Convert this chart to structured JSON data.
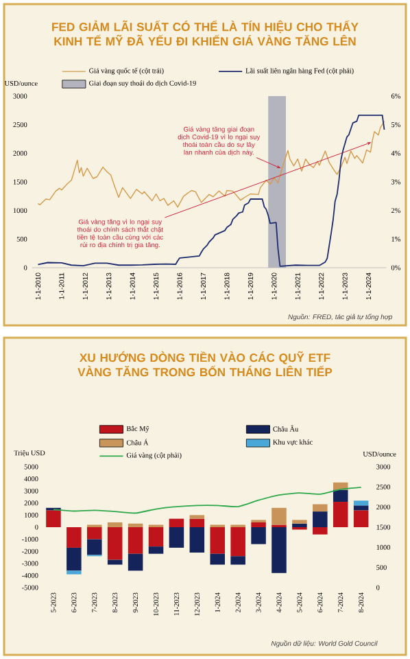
{
  "chart_data": [
    {
      "type": "line",
      "title": "FED GIẢM LÃI SUẤT CÓ THỂ LÀ TÍN HIỆU CHO THẤY KINH TẾ MỸ ĐÃ YẾU ĐI KHIẾN GIÁ VÀNG TĂNG LÊN",
      "ylabel": "USD/ounce",
      "legend": "top",
      "xlim": [
        "2009-10",
        "2024-10"
      ],
      "xticks": [
        {
          "value": "2010-01-01",
          "label": "1-1-2010"
        },
        {
          "value": "2011-01-01",
          "label": "1-1-2011"
        },
        {
          "value": "2012-01-01",
          "label": "1-1-2012"
        },
        {
          "value": "2013-01-01",
          "label": "1-1-2013"
        },
        {
          "value": "2014-01-01",
          "label": "1-1-2014"
        },
        {
          "value": "2015-01-01",
          "label": "1-1-2015"
        },
        {
          "value": "2016-01-01",
          "label": "1-1-2016"
        },
        {
          "value": "2017-01-01",
          "label": "1-1-2017"
        },
        {
          "value": "2018-01-01",
          "label": "1-1-2018"
        },
        {
          "value": "2019-01-01",
          "label": "1-1-2019"
        },
        {
          "value": "2020-01-01",
          "label": "1-1-2020"
        },
        {
          "value": "2021-01-01",
          "label": "1-1-2021"
        },
        {
          "value": "2022-01-01",
          "label": "1-1-2022"
        },
        {
          "value": "2023-01-01",
          "label": "1-1-2023"
        },
        {
          "value": "2024-01-01",
          "label": "1-1-2024"
        }
      ],
      "ylim": [
        0,
        3000
      ],
      "yticks": [
        0,
        500,
        1000,
        1500,
        2000,
        2500,
        3000
      ],
      "y2lim": [
        0,
        6
      ],
      "y2ticks": [
        {
          "value": 0,
          "label": "0%"
        },
        {
          "value": 1,
          "label": "1%"
        },
        {
          "value": 2,
          "label": "2%"
        },
        {
          "value": 3,
          "label": "3%"
        },
        {
          "value": 4,
          "label": "4%"
        },
        {
          "value": 5,
          "label": "5%"
        },
        {
          "value": 6,
          "label": "6%"
        }
      ],
      "bands": [
        {
          "axis": "x",
          "from": "2019-10",
          "to": "2020-07",
          "label": "Giai đoạn suy thoái do dịch Covid-19",
          "color": "#b4b4be"
        }
      ],
      "series": [
        {
          "name": "Giá vàng quốc tế (cột trái)",
          "color": "#d49a4a",
          "x": [
            "2010-01",
            "2010-02",
            "2010-05",
            "2010-07",
            "2010-10",
            "2010-12",
            "2011-01",
            "2011-04",
            "2011-06",
            "2011-08",
            "2011-09",
            "2011-10",
            "2011-11",
            "2011-12",
            "2012-02",
            "2012-05",
            "2012-07",
            "2012-10",
            "2012-12",
            "2013-02",
            "2013-04",
            "2013-06",
            "2013-08",
            "2013-12",
            "2014-03",
            "2014-06",
            "2014-07",
            "2014-11",
            "2015-01",
            "2015-03",
            "2015-05",
            "2015-07",
            "2015-10",
            "2015-12",
            "2016-03",
            "2016-07",
            "2016-09",
            "2016-12",
            "2017-04",
            "2017-06",
            "2017-09",
            "2017-12",
            "2018-01",
            "2018-04",
            "2018-08",
            "2018-10",
            "2019-01",
            "2019-05",
            "2019-06",
            "2019-09",
            "2019-11",
            "2020-01",
            "2020-03",
            "2020-05",
            "2020-08",
            "2020-09",
            "2020-11",
            "2021-01",
            "2021-03",
            "2021-05",
            "2021-07",
            "2021-09",
            "2021-11",
            "2021-12",
            "2022-03",
            "2022-05",
            "2022-07",
            "2022-09",
            "2022-11",
            "2023-01",
            "2023-02",
            "2023-04",
            "2023-06",
            "2023-07",
            "2023-10",
            "2023-12",
            "2024-02",
            "2024-03",
            "2024-04",
            "2024-06",
            "2024-07",
            "2024-08",
            "2024-09"
          ],
          "values": [
            1120,
            1100,
            1200,
            1190,
            1340,
            1390,
            1360,
            1470,
            1530,
            1760,
            1880,
            1660,
            1750,
            1600,
            1740,
            1560,
            1590,
            1760,
            1680,
            1620,
            1420,
            1230,
            1400,
            1210,
            1370,
            1290,
            1330,
            1170,
            1290,
            1170,
            1210,
            1090,
            1170,
            1060,
            1250,
            1350,
            1330,
            1140,
            1280,
            1240,
            1340,
            1250,
            1350,
            1340,
            1180,
            1230,
            1290,
            1280,
            1400,
            1530,
            1460,
            1570,
            1480,
            1730,
            2050,
            1900,
            1780,
            1900,
            1690,
            1900,
            1800,
            1750,
            1860,
            1790,
            2040,
            1840,
            1730,
            1630,
            1760,
            1930,
            1820,
            2040,
            1910,
            1960,
            1830,
            2060,
            2020,
            2230,
            2380,
            2320,
            2450,
            2500,
            2560
          ]
        },
        {
          "name": "Lãi suất liên ngân hàng Fed (cột phải)",
          "color": "#1c2a6e",
          "axis": "y2",
          "x": [
            "2010-01",
            "2010-06",
            "2011-01",
            "2011-06",
            "2011-12",
            "2012-06",
            "2012-12",
            "2013-06",
            "2013-12",
            "2014-06",
            "2014-12",
            "2015-06",
            "2015-11",
            "2015-12",
            "2016-01",
            "2016-11",
            "2016-12",
            "2017-01",
            "2017-03",
            "2017-04",
            "2017-06",
            "2017-07",
            "2017-12",
            "2018-01",
            "2018-03",
            "2018-04",
            "2018-06",
            "2018-07",
            "2018-09",
            "2018-10",
            "2018-12",
            "2019-01",
            "2019-07",
            "2019-08",
            "2019-09",
            "2019-10",
            "2019-11",
            "2020-02",
            "2020-03",
            "2020-04",
            "2020-12",
            "2021-06",
            "2021-12",
            "2022-03",
            "2022-04",
            "2022-05",
            "2022-06",
            "2022-07",
            "2022-08",
            "2022-09",
            "2022-10",
            "2022-11",
            "2022-12",
            "2023-02",
            "2023-03",
            "2023-05",
            "2023-07",
            "2023-08",
            "2024-07",
            "2024-08",
            "2024-09"
          ],
          "values": [
            0.11,
            0.18,
            0.17,
            0.09,
            0.07,
            0.16,
            0.16,
            0.09,
            0.09,
            0.1,
            0.12,
            0.13,
            0.12,
            0.24,
            0.34,
            0.41,
            0.54,
            0.65,
            0.79,
            0.9,
            1.04,
            1.15,
            1.3,
            1.41,
            1.51,
            1.69,
            1.82,
            1.91,
            1.95,
            2.19,
            2.27,
            2.4,
            2.4,
            2.13,
            2.04,
            1.83,
            1.55,
            1.58,
            0.65,
            0.05,
            0.09,
            0.08,
            0.08,
            0.2,
            0.33,
            0.77,
            1.21,
            1.68,
            2.33,
            2.56,
            3.08,
            3.78,
            4.1,
            4.57,
            4.65,
            5.06,
            5.12,
            5.33,
            5.33,
            5.33,
            4.83
          ]
        }
      ],
      "annotations": [
        {
          "text": "Giá vàng tăng giai đoạn dịch Covid-19 vì lo ngại suy thoái toàn cầu do sự lây lan nhanh của dịch này.",
          "x": "2020-05",
          "y": 1730
        },
        {
          "text": "Giá vàng tăng vì lo ngại suy thoái do chính sách thắt chặt tiền tệ toàn cầu cùng với các rủi ro địa chính trị gia tăng.",
          "x": "2024-03",
          "y": 2200
        },
        "Nguồn: FRED, tác giả tự tổng hợp"
      ]
    },
    {
      "type": "bar",
      "stacked": true,
      "title": "XU HƯỚNG DÒNG TIỀN VÀO CÁC QUỸ ETF VÀNG TĂNG TRONG BỐN THÁNG LIÊN TIẾP",
      "ylabel": "Triệu USD",
      "y2label": "USD/ounce",
      "legend": "top",
      "categories": [
        "5-2023",
        "6-2023",
        "7-2023",
        "8-2023",
        "9-2023",
        "10-2023",
        "11-2023",
        "12-2023",
        "1-2024",
        "2-2024",
        "3-2024",
        "4-2024",
        "5-2024",
        "6-2024",
        "7-2024",
        "8-2024"
      ],
      "ylim": [
        -5000,
        5000
      ],
      "yticks": [
        -5000,
        -4000,
        -3000,
        -2000,
        -1000,
        0,
        1000,
        2000,
        3000,
        4000,
        5000
      ],
      "y2lim": [
        0,
        3000
      ],
      "y2ticks": [
        0,
        500,
        1000,
        1500,
        2000,
        2500,
        3000
      ],
      "series": [
        {
          "name": "Bắc Mỹ",
          "color": "#c0141c",
          "values": [
            1400,
            -1700,
            -1000,
            -2700,
            -2200,
            -1600,
            700,
            700,
            -2200,
            -2400,
            400,
            200,
            -200,
            -600,
            2100,
            1400
          ]
        },
        {
          "name": "Châu Âu",
          "color": "#14245a",
          "values": [
            200,
            -1900,
            -1300,
            -400,
            -1400,
            -600,
            -1700,
            -2100,
            -900,
            -700,
            -1400,
            -3800,
            300,
            1300,
            1000,
            400
          ]
        },
        {
          "name": "Châu Á",
          "color": "#c9945a",
          "values": [
            0,
            0,
            200,
            400,
            300,
            200,
            0,
            300,
            200,
            200,
            200,
            1400,
            300,
            600,
            600,
            0
          ]
        },
        {
          "name": "Khu vực khác",
          "color": "#4aa8d8",
          "values": [
            0,
            -300,
            -100,
            0,
            0,
            0,
            0,
            0,
            0,
            0,
            0,
            0,
            0,
            0,
            0,
            400
          ]
        },
        {
          "name": "Giá vàng (cột phải)",
          "type": "line",
          "axis": "y2",
          "color": "#2ca84a",
          "values": [
            1940,
            1900,
            1920,
            1890,
            1850,
            1950,
            2010,
            2040,
            2040,
            2010,
            2170,
            2300,
            2350,
            2320,
            2440,
            2490
          ]
        }
      ],
      "annotations": [
        "Nguồn dữ liệu: World Gold Council"
      ]
    }
  ]
}
